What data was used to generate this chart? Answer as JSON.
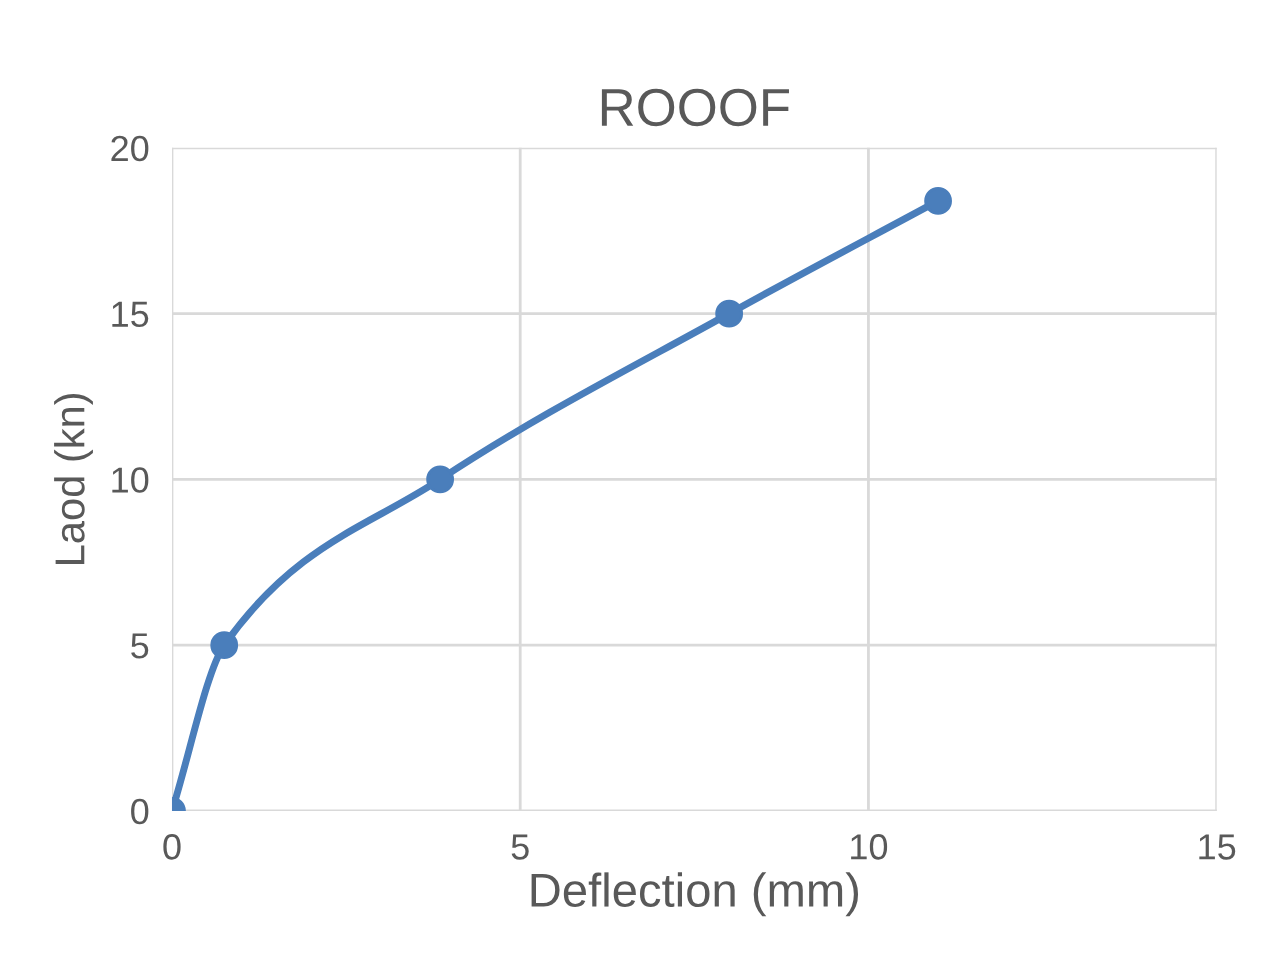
{
  "chart_data": {
    "type": "line",
    "title": "ROOOF",
    "xlabel": "Deflection (mm)",
    "ylabel": "Laod (kn)",
    "series": [
      {
        "color": "#4a7ebb",
        "x": [
          0,
          0.75,
          3.85,
          8,
          11
        ],
        "values": [
          0,
          5,
          10,
          15,
          18.4
        ]
      }
    ],
    "xlim": [
      0,
      15
    ],
    "ylim": [
      0,
      20
    ],
    "xticks": [
      0,
      5,
      10,
      15
    ],
    "yticks": [
      0,
      5,
      10,
      15,
      20
    ],
    "grid": true,
    "marker": "circle",
    "line_style": "solid",
    "legend": false
  }
}
